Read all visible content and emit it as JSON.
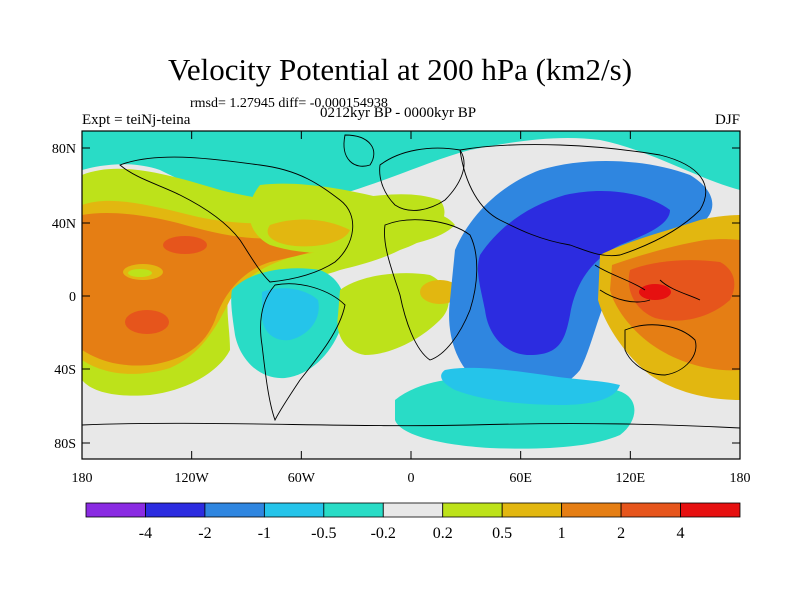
{
  "title": "Velocity Potential at 200 hPa (km2/s)",
  "stats_line": "rmsd= 1.27945 diff= -0.000154938",
  "subtitle": "0212kyr BP - 0000kyr BP",
  "experiment": "Expt = teiNj-teina",
  "season": "DJF",
  "lat_ticks": [
    "80N",
    "40N",
    "0",
    "40S",
    "80S"
  ],
  "lon_ticks": [
    "180",
    "120W",
    "60W",
    "0",
    "60E",
    "120E",
    "180"
  ],
  "colorbar": {
    "labels": [
      "-4",
      "-2",
      "-1",
      "-0.5",
      "-0.2",
      "0.2",
      "0.5",
      "1",
      "2",
      "4"
    ],
    "colors": [
      "#8a2be2",
      "#2c2ce0",
      "#2f86e0",
      "#25c4ea",
      "#29dcc6",
      "#e8e8e8",
      "#bde21a",
      "#e2b710",
      "#e57e14",
      "#e6551c",
      "#e61010"
    ]
  },
  "palette": {
    "ocean_neutral": "#e8e8e8",
    "teal": "#29dcc6",
    "cyan": "#25c4ea",
    "blue_light": "#2f86e0",
    "blue_dark": "#2c2ce0",
    "yellow_green": "#bde21a",
    "gold": "#e2b710",
    "orange": "#e57e14",
    "red_orange": "#e6551c",
    "red": "#e61010"
  }
}
